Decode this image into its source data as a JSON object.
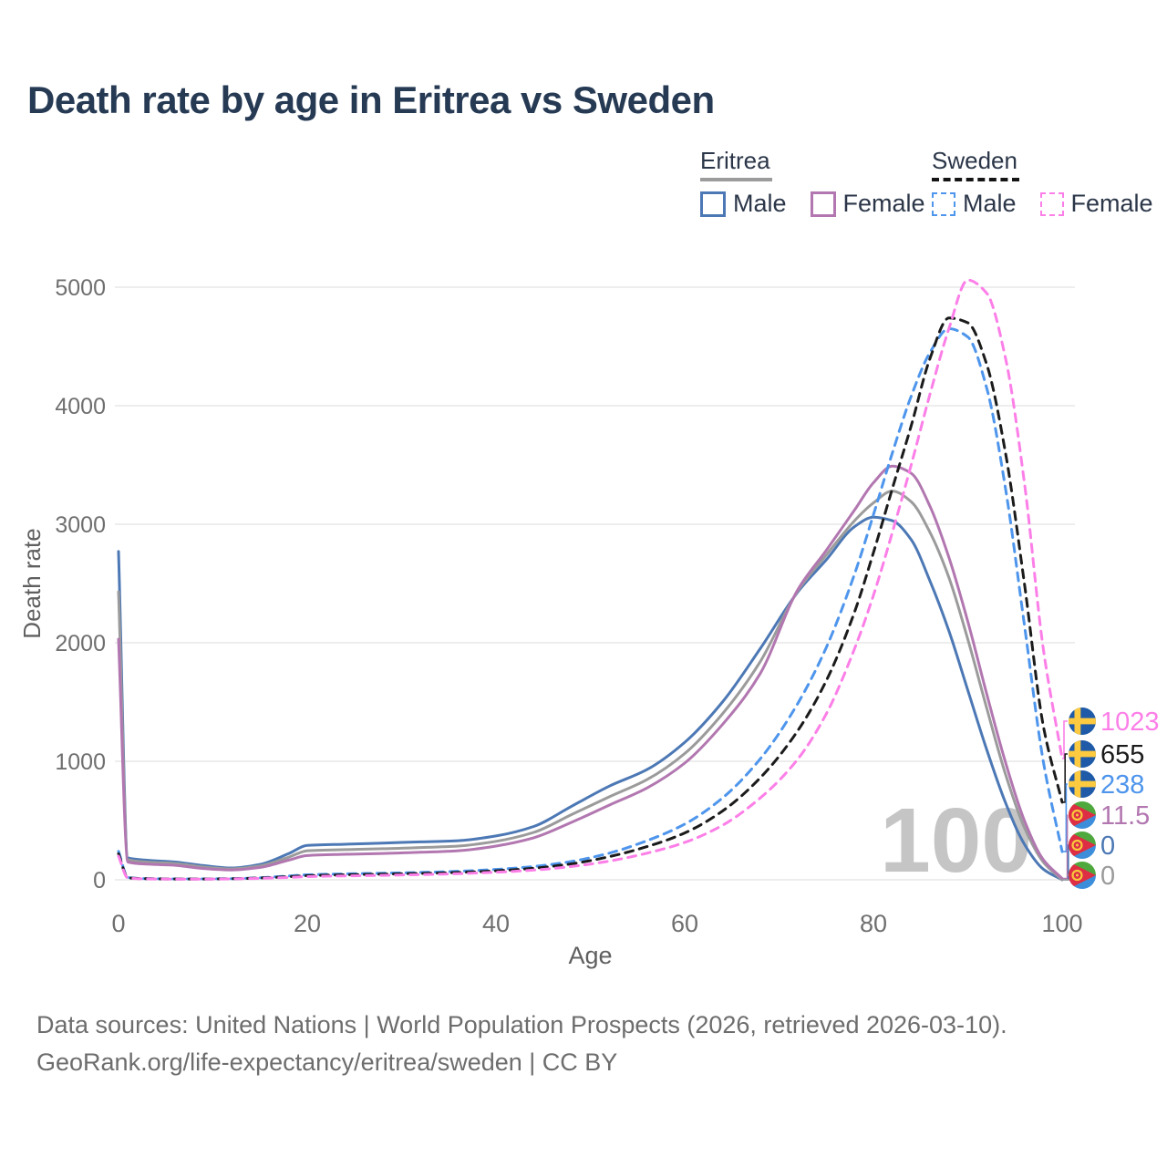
{
  "title": "Death rate by age in Eritrea vs Sweden",
  "age_indicator": "100",
  "legend": {
    "groups": [
      {
        "label": "Eritrea",
        "line_style": "solid",
        "underline_color": "#9b9b9b",
        "items": [
          {
            "label": "Male",
            "color": "#4C78B5"
          },
          {
            "label": "Female",
            "color": "#B277B0"
          }
        ]
      },
      {
        "label": "Sweden",
        "line_style": "dashed",
        "underline_color": "#141414",
        "items": [
          {
            "label": "Male",
            "color": "#4E95EC"
          },
          {
            "label": "Female",
            "color": "#FC7FE8"
          }
        ]
      }
    ]
  },
  "axes": {
    "x_label": "Age",
    "y_label": "Death rate",
    "x_ticks": [
      0,
      20,
      40,
      60,
      80,
      100
    ],
    "y_ticks": [
      0,
      1000,
      2000,
      3000,
      4000,
      5000
    ]
  },
  "chart_data": {
    "type": "line",
    "title": "Death rate by age in Eritrea vs Sweden",
    "xlabel": "Age",
    "ylabel": "Death rate",
    "xlim": [
      0,
      100
    ],
    "ylim": [
      0,
      5000
    ],
    "grid": "horizontal",
    "legend_position": "top-right",
    "x": [
      0,
      1,
      3,
      6,
      9,
      12,
      15,
      18,
      20,
      24,
      28,
      32,
      36,
      40,
      44,
      48,
      52,
      56,
      60,
      64,
      68,
      72,
      75,
      78,
      80,
      82,
      84,
      86,
      88,
      90,
      92,
      94,
      96,
      98,
      100
    ],
    "series": [
      {
        "name": "Eritrea Male",
        "country": "eritrea",
        "color": "#4C78B5",
        "dashed": false,
        "end_label": "0",
        "values": [
          2770,
          185,
          165,
          150,
          120,
          100,
          130,
          220,
          290,
          300,
          310,
          320,
          330,
          370,
          450,
          620,
          790,
          930,
          1160,
          1500,
          1950,
          2430,
          2700,
          2980,
          3060,
          3030,
          2870,
          2520,
          2100,
          1600,
          1100,
          650,
          300,
          90,
          0
        ]
      },
      {
        "name": "Eritrea Both",
        "country": "eritrea",
        "color": "#9b9b9b",
        "dashed": false,
        "end_label": "0",
        "values": [
          2430,
          170,
          150,
          138,
          108,
          92,
          118,
          190,
          245,
          255,
          262,
          272,
          285,
          325,
          400,
          550,
          700,
          845,
          1065,
          1400,
          1840,
          2440,
          2740,
          3030,
          3180,
          3280,
          3190,
          2930,
          2550,
          2030,
          1450,
          890,
          440,
          150,
          0
        ]
      },
      {
        "name": "Eritrea Female",
        "country": "eritrea",
        "color": "#B277B0",
        "dashed": false,
        "end_label": "11.5",
        "values": [
          2030,
          150,
          132,
          122,
          95,
          83,
          105,
          165,
          205,
          215,
          222,
          232,
          245,
          285,
          355,
          485,
          630,
          775,
          985,
          1310,
          1740,
          2450,
          2780,
          3120,
          3350,
          3490,
          3430,
          3150,
          2720,
          2180,
          1570,
          990,
          500,
          170,
          11.5
        ]
      },
      {
        "name": "Sweden Male",
        "country": "sweden",
        "color": "#4E95EC",
        "dashed": true,
        "end_label": "238",
        "values": [
          240,
          20,
          10,
          8,
          8,
          10,
          18,
          32,
          42,
          50,
          56,
          62,
          72,
          88,
          112,
          155,
          225,
          330,
          470,
          690,
          1020,
          1490,
          1960,
          2580,
          3080,
          3600,
          4080,
          4450,
          4650,
          4580,
          4150,
          3300,
          2150,
          1000,
          238
        ]
      },
      {
        "name": "Sweden Both",
        "country": "sweden",
        "color": "#1b1b1b",
        "dashed": true,
        "end_label": "655",
        "values": [
          220,
          17,
          9,
          7,
          7,
          9,
          15,
          26,
          35,
          42,
          48,
          54,
          62,
          76,
          98,
          135,
          195,
          280,
          395,
          580,
          860,
          1260,
          1680,
          2260,
          2760,
          3300,
          3830,
          4400,
          4740,
          4700,
          4350,
          3600,
          2500,
          1300,
          655
        ]
      },
      {
        "name": "Sweden Female",
        "country": "sweden",
        "color": "#FC7FE8",
        "dashed": true,
        "end_label": "1023",
        "values": [
          200,
          15,
          8,
          6,
          6,
          8,
          12,
          20,
          27,
          33,
          38,
          44,
          52,
          64,
          82,
          112,
          158,
          225,
          315,
          460,
          690,
          1020,
          1400,
          1950,
          2400,
          2930,
          3500,
          4100,
          4650,
          5060,
          4950,
          4400,
          3350,
          1950,
          1023
        ]
      }
    ],
    "flag_colors": {
      "sweden": {
        "field": "#1E5AA8",
        "cross": "#FDCA40"
      },
      "eritrea": {
        "top": "#4FA83D",
        "bottom": "#3C8EDB",
        "triangle": "#DD2E44",
        "emblem": "#F8C83C"
      }
    }
  },
  "footer": {
    "line1": "Data sources: United Nations | World Population Prospects (2026, retrieved 2026-03-10).",
    "line2": "GeoRank.org/life-expectancy/eritrea/sweden | CC BY"
  }
}
